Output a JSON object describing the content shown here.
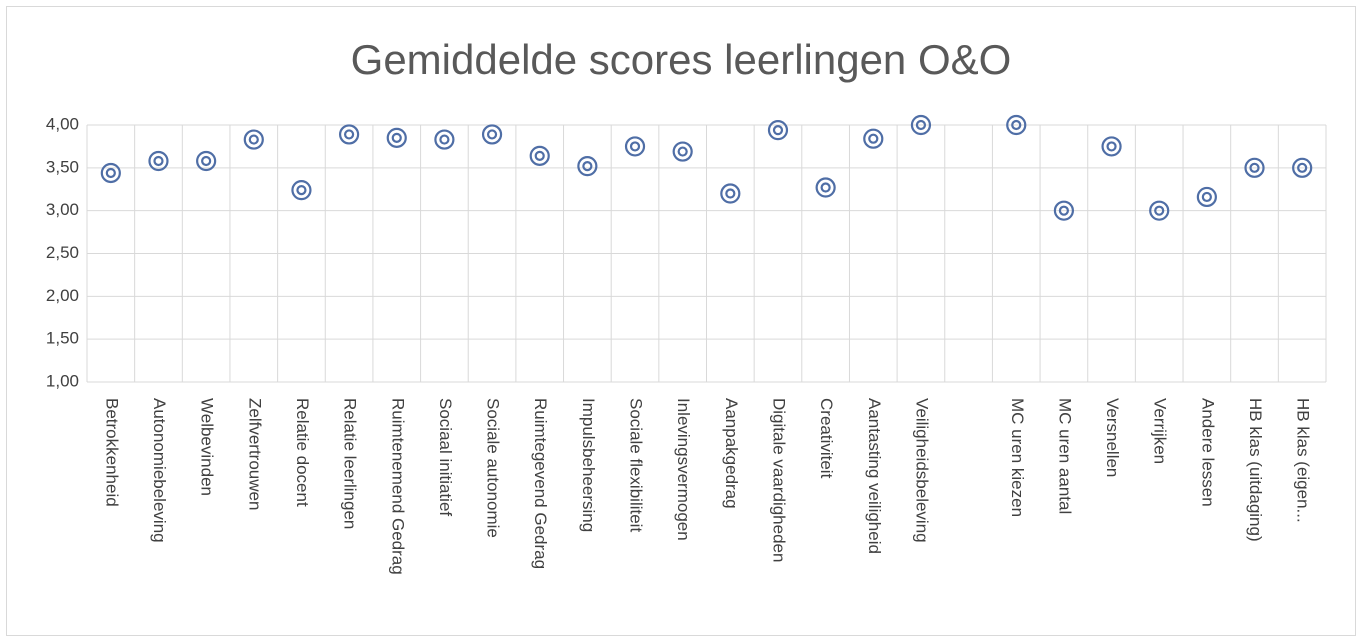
{
  "chart_data": {
    "type": "scatter",
    "title": "Gemiddelde scores leerlingen O&O",
    "categories": [
      "Betrokkenheid",
      "Autonomiebeleving",
      "Welbevinden",
      "Zelfvertrouwen",
      "Relatie docent",
      "Relatie leerlingen",
      "Ruimtenemend Gedrag",
      "Sociaal initiatief",
      "Sociale autonomie",
      "Ruimtegevend Gedrag",
      "Impulsbeheersing",
      "Sociale flexibiliteit",
      "Inlevingsvermogen",
      "Aanpakgedrag",
      "Digitale vaardigheden",
      "Creativiteit",
      "Aantasting veiligheid",
      "Veiligheidsbeleving",
      null,
      "MC uren kiezen",
      "MC uren aantal",
      "Versnellen",
      "Verrijken",
      "Andere lessen",
      "HB klas (uitdaging)",
      "HB klas (eigen..."
    ],
    "values": [
      3.44,
      3.58,
      3.58,
      3.83,
      3.24,
      3.89,
      3.85,
      3.83,
      3.89,
      3.64,
      3.52,
      3.75,
      3.69,
      3.2,
      3.94,
      3.27,
      3.84,
      4.0,
      null,
      4.0,
      3.0,
      3.75,
      3.0,
      3.16,
      3.5,
      3.5
    ],
    "color": "#4f6ea6",
    "ylim": [
      1,
      4
    ],
    "yticks": [
      {
        "value": 1,
        "label": "1,00"
      },
      {
        "value": 1.5,
        "label": "1,50"
      },
      {
        "value": 2,
        "label": "2,00"
      },
      {
        "value": 2.5,
        "label": "2,50"
      },
      {
        "value": 3,
        "label": "3,00"
      },
      {
        "value": 3.5,
        "label": "3,50"
      },
      {
        "value": 4,
        "label": "4,00"
      }
    ],
    "grid": true
  }
}
